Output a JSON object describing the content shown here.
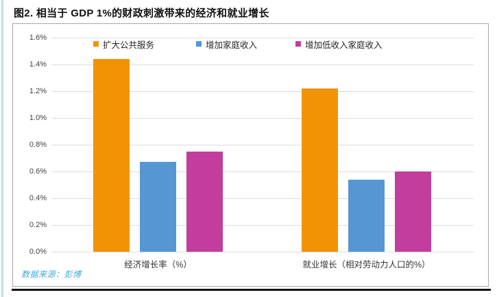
{
  "page": {
    "title": "图2. 相当于 GDP 1%的财政刺激带来的经济和就业增长"
  },
  "chart_data": {
    "type": "bar",
    "title": "图2. 相当于 GDP 1%的财政刺激带来的经济和就业增长",
    "categories": [
      "经济增长率（%）",
      "就业增长（相对劳动力人口的%）"
    ],
    "series": [
      {
        "name": "扩大公共服务",
        "color": "#F29305",
        "values": [
          1.44,
          1.22
        ]
      },
      {
        "name": "增加家庭收入",
        "color": "#5596D3",
        "values": [
          0.67,
          0.54
        ]
      },
      {
        "name": "增加低收入家庭收入",
        "color": "#C23D9E",
        "values": [
          0.75,
          0.6
        ]
      }
    ],
    "ylim": [
      0,
      1.6
    ],
    "ytick_step": 0.2,
    "ytick_labels": [
      "1.6%",
      "1.4%",
      "1.2%",
      "1.0%",
      "0.8%",
      "0.6%",
      "0.4%",
      "0.2%",
      "0.0%"
    ],
    "grid": true,
    "gridline_color": "#DCDCDC",
    "legend_position": "top",
    "source": "数据来源：彭博"
  },
  "colors": {
    "frame_border": "#A6A6A6",
    "bottom_rule": "#141414",
    "source_text": "#3FA9DC",
    "left_strip": "#C3DCEA"
  }
}
